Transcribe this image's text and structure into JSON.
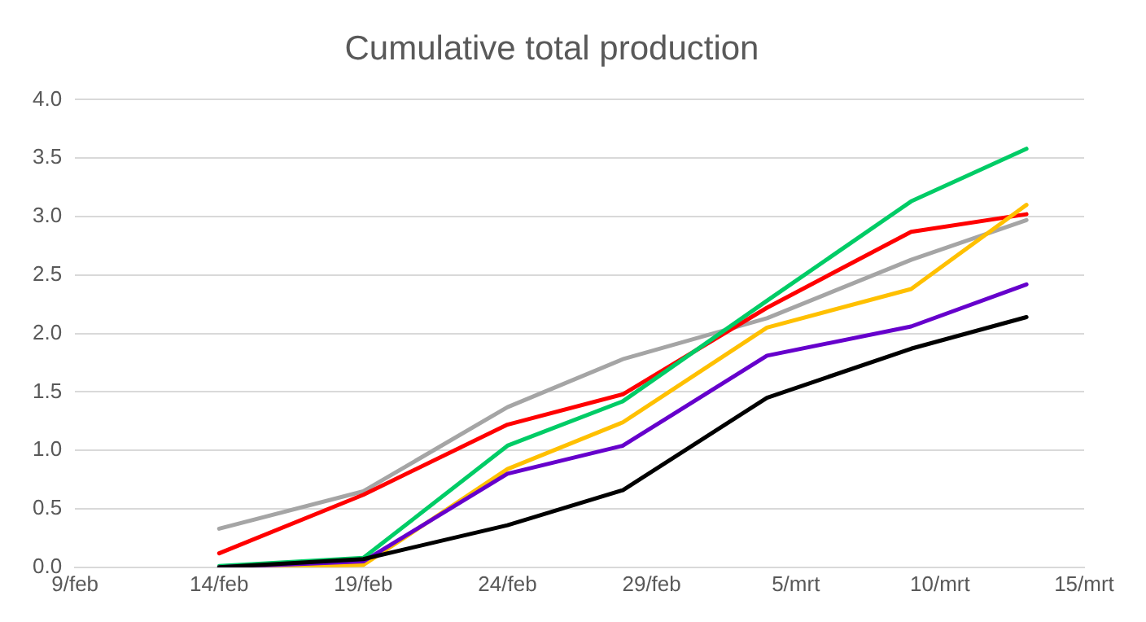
{
  "chart_data": {
    "type": "line",
    "title": "Cumulative total production",
    "x": [
      "--02-14",
      "--02-19",
      "--02-24",
      "--02-28",
      "--03-04",
      "--03-09",
      "--03-13"
    ],
    "series": [
      {
        "color": "#a5a5a5",
        "values": [
          0.33,
          0.65,
          1.37,
          1.78,
          2.13,
          2.63,
          2.97
        ]
      },
      {
        "color": "#ff0000",
        "values": [
          0.12,
          0.62,
          1.22,
          1.48,
          2.22,
          2.87,
          3.02
        ]
      },
      {
        "color": "#00cc66",
        "values": [
          0.01,
          0.08,
          1.04,
          1.42,
          2.28,
          3.13,
          3.58
        ]
      },
      {
        "color": "#ffc000",
        "values": [
          0.0,
          0.02,
          0.84,
          1.24,
          2.05,
          2.38,
          3.1
        ]
      },
      {
        "color": "#6600cc",
        "values": [
          0.0,
          0.05,
          0.8,
          1.04,
          1.81,
          2.06,
          2.42
        ]
      },
      {
        "color": "#000000",
        "values": [
          0.0,
          0.07,
          0.36,
          0.66,
          1.45,
          1.87,
          2.14
        ]
      }
    ],
    "xlim": [
      "--02-09",
      "--03-15"
    ],
    "xticks": [
      {
        "value": "--02-09",
        "label": "9/feb"
      },
      {
        "value": "--02-14",
        "label": "14/feb"
      },
      {
        "value": "--02-19",
        "label": "19/feb"
      },
      {
        "value": "--02-24",
        "label": "24/feb"
      },
      {
        "value": "--02-29",
        "label": "29/feb"
      },
      {
        "value": "--03-05",
        "label": "5/mrt"
      },
      {
        "value": "--03-10",
        "label": "10/mrt"
      },
      {
        "value": "--03-15",
        "label": "15/mrt"
      }
    ],
    "ylim": [
      0,
      4
    ],
    "yticks": [
      {
        "value": 0,
        "label": "0.0"
      },
      {
        "value": 0.5,
        "label": "0.5"
      },
      {
        "value": 1,
        "label": "1.0"
      },
      {
        "value": 1.5,
        "label": "1.5"
      },
      {
        "value": 2,
        "label": "2.0"
      },
      {
        "value": 2.5,
        "label": "2.5"
      },
      {
        "value": 3,
        "label": "3.0"
      },
      {
        "value": 3.5,
        "label": "3.5"
      },
      {
        "value": 4,
        "label": "4.0"
      }
    ],
    "grid": "y",
    "legend": false,
    "marker": "none",
    "line_style": "solid"
  }
}
